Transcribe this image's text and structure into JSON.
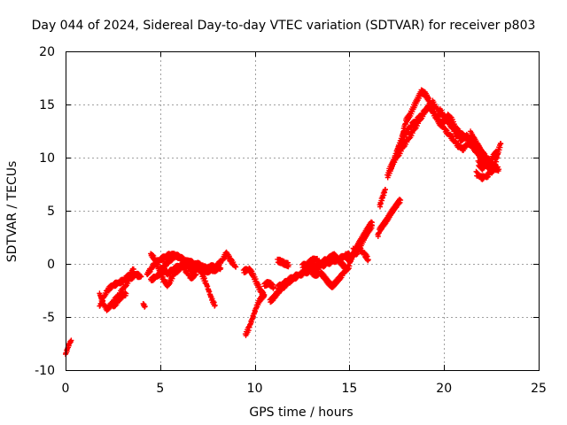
{
  "chart_data": {
    "type": "scatter",
    "title": "Day 044 of 2024, Sidereal Day-to-day VTEC variation (SDTVAR) for receiver p803",
    "xlabel": "GPS time / hours",
    "ylabel": "SDTVAR / TECUs",
    "xlim": [
      0,
      25
    ],
    "ylim": [
      -10,
      20
    ],
    "xticks": [
      0,
      5,
      10,
      15,
      20,
      25
    ],
    "yticks": [
      -10,
      -5,
      0,
      5,
      10,
      15,
      20
    ],
    "grid": true,
    "marker": "+",
    "color": "#ff0000",
    "series": [
      {
        "name": "SDTVAR",
        "segments": [
          [
            [
              0.0,
              -8.5
            ],
            [
              0.1,
              -8.0
            ],
            [
              0.2,
              -7.5
            ],
            [
              0.3,
              -7.2
            ]
          ],
          [
            [
              1.8,
              -4.0
            ],
            [
              2.0,
              -3.2
            ],
            [
              2.2,
              -2.5
            ],
            [
              2.5,
              -2.0
            ],
            [
              2.8,
              -1.8
            ],
            [
              3.1,
              -1.5
            ],
            [
              3.4,
              -1.0
            ],
            [
              3.6,
              -0.5
            ]
          ],
          [
            [
              1.8,
              -2.8
            ],
            [
              2.0,
              -3.8
            ],
            [
              2.2,
              -4.3
            ],
            [
              2.5,
              -3.6
            ],
            [
              2.8,
              -3.0
            ],
            [
              3.1,
              -2.2
            ],
            [
              3.4,
              -1.4
            ],
            [
              3.7,
              -1.0
            ],
            [
              4.0,
              -1.2
            ]
          ],
          [
            [
              2.5,
              -4.0
            ],
            [
              2.8,
              -3.5
            ],
            [
              3.0,
              -3.0
            ],
            [
              3.2,
              -2.8
            ]
          ],
          [
            [
              4.1,
              -3.8
            ],
            [
              4.2,
              -4.0
            ]
          ],
          [
            [
              4.3,
              -1.0
            ],
            [
              4.5,
              -0.5
            ],
            [
              4.7,
              0.0
            ],
            [
              5.0,
              0.4
            ],
            [
              5.3,
              0.7
            ],
            [
              5.6,
              0.9
            ],
            [
              6.0,
              0.6
            ],
            [
              6.4,
              0.3
            ],
            [
              6.8,
              -0.2
            ],
            [
              7.2,
              -0.4
            ],
            [
              7.6,
              -0.3
            ],
            [
              8.0,
              -0.2
            ],
            [
              8.3,
              0.4
            ],
            [
              8.5,
              1.0
            ],
            [
              8.7,
              0.4
            ],
            [
              9.0,
              -0.3
            ]
          ],
          [
            [
              4.5,
              -1.5
            ],
            [
              4.8,
              -1.2
            ],
            [
              5.0,
              -0.9
            ],
            [
              5.2,
              -0.2
            ],
            [
              5.5,
              0.3
            ],
            [
              5.8,
              0.8
            ],
            [
              6.2,
              0.5
            ],
            [
              6.6,
              -0.6
            ],
            [
              7.0,
              -0.5
            ],
            [
              7.4,
              -0.7
            ],
            [
              7.8,
              -0.6
            ],
            [
              8.2,
              -0.4
            ]
          ],
          [
            [
              4.5,
              0.9
            ],
            [
              4.7,
              0.5
            ],
            [
              5.0,
              -0.8
            ],
            [
              5.2,
              -1.6
            ],
            [
              5.4,
              -2.0
            ],
            [
              5.8,
              -0.8
            ],
            [
              6.2,
              -0.2
            ],
            [
              6.6,
              -1.3
            ],
            [
              6.9,
              -1.0
            ]
          ],
          [
            [
              5.0,
              -0.4
            ],
            [
              5.2,
              -0.6
            ],
            [
              5.4,
              -0.9
            ],
            [
              5.7,
              -0.5
            ],
            [
              6.1,
              -0.1
            ],
            [
              6.5,
              0.2
            ],
            [
              6.9,
              0.0
            ],
            [
              7.3,
              -0.2
            ]
          ],
          [
            [
              7.2,
              -1.0
            ],
            [
              7.4,
              -1.7
            ],
            [
              7.5,
              -2.2
            ],
            [
              7.6,
              -2.7
            ],
            [
              7.7,
              -3.2
            ],
            [
              7.8,
              -3.6
            ],
            [
              7.9,
              -3.9
            ]
          ],
          [
            [
              9.4,
              -0.7
            ],
            [
              9.7,
              -0.5
            ],
            [
              9.9,
              -1.0
            ],
            [
              10.1,
              -1.8
            ],
            [
              10.3,
              -2.5
            ],
            [
              10.5,
              -3.0
            ]
          ],
          [
            [
              9.5,
              -6.7
            ],
            [
              9.7,
              -6.0
            ],
            [
              9.8,
              -5.5
            ],
            [
              9.9,
              -5.0
            ],
            [
              10.0,
              -4.5
            ],
            [
              10.1,
              -4.0
            ],
            [
              10.2,
              -3.6
            ],
            [
              10.3,
              -3.3
            ],
            [
              10.5,
              -2.9
            ]
          ],
          [
            [
              10.5,
              -2.0
            ],
            [
              10.7,
              -1.8
            ],
            [
              10.9,
              -2.0
            ],
            [
              11.0,
              -2.2
            ]
          ],
          [
            [
              10.8,
              -3.5
            ],
            [
              11.0,
              -3.2
            ],
            [
              11.2,
              -2.7
            ],
            [
              11.5,
              -2.2
            ],
            [
              11.8,
              -1.7
            ],
            [
              12.1,
              -1.3
            ],
            [
              12.4,
              -1.0
            ],
            [
              12.7,
              -0.8
            ],
            [
              13.0,
              -0.6
            ],
            [
              13.3,
              -0.3
            ],
            [
              13.6,
              -0.1
            ],
            [
              13.9,
              0.1
            ],
            [
              14.2,
              0.3
            ],
            [
              14.5,
              0.5
            ],
            [
              14.8,
              0.7
            ],
            [
              15.0,
              0.9
            ]
          ],
          [
            [
              11.2,
              -2.2
            ],
            [
              11.5,
              -1.9
            ],
            [
              11.8,
              -1.5
            ],
            [
              12.1,
              -1.2
            ],
            [
              12.4,
              -1.0
            ],
            [
              12.7,
              -0.7
            ],
            [
              13.0,
              -0.4
            ],
            [
              13.3,
              -0.1
            ],
            [
              13.6,
              0.2
            ],
            [
              13.9,
              0.5
            ],
            [
              14.2,
              0.8
            ]
          ],
          [
            [
              11.2,
              0.3
            ],
            [
              11.4,
              0.2
            ],
            [
              11.6,
              0.0
            ],
            [
              11.8,
              -0.1
            ]
          ],
          [
            [
              12.5,
              -0.2
            ],
            [
              12.8,
              0.0
            ],
            [
              13.0,
              0.3
            ],
            [
              13.3,
              0.5
            ]
          ],
          [
            [
              13.0,
              -0.8
            ],
            [
              13.2,
              -1.0
            ],
            [
              13.5,
              -0.9
            ],
            [
              13.7,
              -1.3
            ],
            [
              13.9,
              -1.8
            ],
            [
              14.1,
              -2.1
            ],
            [
              14.3,
              -1.7
            ],
            [
              14.5,
              -1.3
            ],
            [
              14.8,
              -0.6
            ],
            [
              15.0,
              -0.2
            ]
          ],
          [
            [
              13.6,
              -0.2
            ],
            [
              13.8,
              0.3
            ],
            [
              14.0,
              0.6
            ],
            [
              14.2,
              0.8
            ],
            [
              14.4,
              0.4
            ],
            [
              14.6,
              0.0
            ],
            [
              14.8,
              -0.4
            ]
          ],
          [
            [
              14.5,
              0.5
            ],
            [
              14.8,
              0.8
            ],
            [
              15.0,
              0.3
            ],
            [
              15.2,
              0.9
            ],
            [
              15.4,
              1.6
            ],
            [
              15.6,
              2.2
            ],
            [
              15.8,
              2.8
            ],
            [
              16.0,
              3.4
            ],
            [
              16.2,
              3.9
            ]
          ],
          [
            [
              15.0,
              0.2
            ],
            [
              15.3,
              1.0
            ],
            [
              15.5,
              1.5
            ],
            [
              15.8,
              0.9
            ],
            [
              16.0,
              0.4
            ]
          ],
          [
            [
              15.2,
              1.3
            ],
            [
              15.4,
              1.0
            ],
            [
              15.6,
              1.8
            ],
            [
              15.8,
              2.5
            ],
            [
              16.0,
              3.1
            ],
            [
              16.2,
              3.6
            ]
          ],
          [
            [
              16.5,
              2.6
            ],
            [
              16.6,
              3.2
            ],
            [
              16.8,
              3.7
            ],
            [
              17.0,
              4.2
            ],
            [
              17.2,
              4.8
            ],
            [
              17.4,
              5.3
            ],
            [
              17.6,
              5.8
            ],
            [
              17.7,
              6.0
            ]
          ],
          [
            [
              16.6,
              5.4
            ],
            [
              16.7,
              6.0
            ],
            [
              16.8,
              6.5
            ],
            [
              16.9,
              7.0
            ]
          ],
          [
            [
              17.0,
              8.2
            ],
            [
              17.2,
              9.0
            ],
            [
              17.4,
              10.0
            ],
            [
              17.6,
              11.0
            ],
            [
              17.8,
              12.0
            ],
            [
              17.9,
              12.8
            ],
            [
              18.0,
              13.5
            ],
            [
              18.2,
              14.0
            ],
            [
              18.4,
              14.8
            ],
            [
              18.6,
              15.5
            ],
            [
              18.8,
              16.2
            ],
            [
              19.0,
              16.0
            ],
            [
              19.2,
              15.4
            ],
            [
              19.4,
              14.6
            ],
            [
              19.6,
              13.8
            ],
            [
              19.8,
              13.1
            ],
            [
              20.0,
              13.4
            ],
            [
              20.2,
              13.9
            ],
            [
              20.4,
              13.6
            ],
            [
              20.6,
              12.8
            ],
            [
              20.8,
              12.0
            ]
          ],
          [
            [
              17.1,
              8.8
            ],
            [
              17.3,
              9.5
            ],
            [
              17.6,
              10.3
            ],
            [
              17.9,
              11.2
            ],
            [
              18.2,
              12.0
            ],
            [
              18.5,
              12.9
            ],
            [
              18.8,
              13.8
            ],
            [
              19.1,
              14.6
            ],
            [
              19.4,
              15.2
            ],
            [
              19.7,
              14.4
            ],
            [
              20.0,
              13.7
            ],
            [
              20.3,
              13.2
            ],
            [
              20.6,
              12.3
            ],
            [
              20.9,
              11.7
            ],
            [
              21.2,
              12.0
            ],
            [
              21.5,
              11.6
            ],
            [
              21.8,
              11.0
            ],
            [
              22.1,
              10.3
            ],
            [
              22.4,
              9.7
            ],
            [
              22.7,
              9.2
            ]
          ],
          [
            [
              17.5,
              10.5
            ],
            [
              17.8,
              11.6
            ],
            [
              18.0,
              12.4
            ],
            [
              18.3,
              13.1
            ],
            [
              18.6,
              13.6
            ],
            [
              18.9,
              14.2
            ],
            [
              19.2,
              14.8
            ],
            [
              19.5,
              14.0
            ],
            [
              19.8,
              13.3
            ],
            [
              20.1,
              12.5
            ],
            [
              20.4,
              11.9
            ],
            [
              20.7,
              11.2
            ],
            [
              21.0,
              10.8
            ],
            [
              21.3,
              11.4
            ],
            [
              21.6,
              10.8
            ],
            [
              21.9,
              10.1
            ],
            [
              22.2,
              9.4
            ],
            [
              22.5,
              8.7
            ],
            [
              22.8,
              9.0
            ]
          ],
          [
            [
              19.8,
              14.4
            ],
            [
              20.1,
              13.7
            ],
            [
              20.4,
              13.1
            ],
            [
              20.7,
              12.6
            ],
            [
              21.0,
              12.1
            ],
            [
              21.3,
              11.5
            ],
            [
              21.6,
              10.9
            ],
            [
              21.9,
              10.2
            ],
            [
              22.2,
              9.6
            ],
            [
              22.5,
              9.2
            ],
            [
              22.9,
              8.9
            ]
          ],
          [
            [
              21.7,
              8.5
            ],
            [
              22.0,
              8.1
            ],
            [
              22.3,
              8.3
            ],
            [
              22.6,
              9.0
            ],
            [
              22.8,
              10.0
            ],
            [
              22.9,
              10.8
            ],
            [
              23.0,
              11.3
            ]
          ],
          [
            [
              21.8,
              9.5
            ],
            [
              22.0,
              9.0
            ],
            [
              22.3,
              9.4
            ],
            [
              22.6,
              10.1
            ],
            [
              22.8,
              10.6
            ]
          ],
          [
            [
              21.4,
              12.3
            ],
            [
              21.6,
              11.7
            ],
            [
              21.8,
              11.1
            ],
            [
              22.0,
              10.5
            ],
            [
              22.2,
              10.0
            ]
          ]
        ]
      }
    ]
  }
}
